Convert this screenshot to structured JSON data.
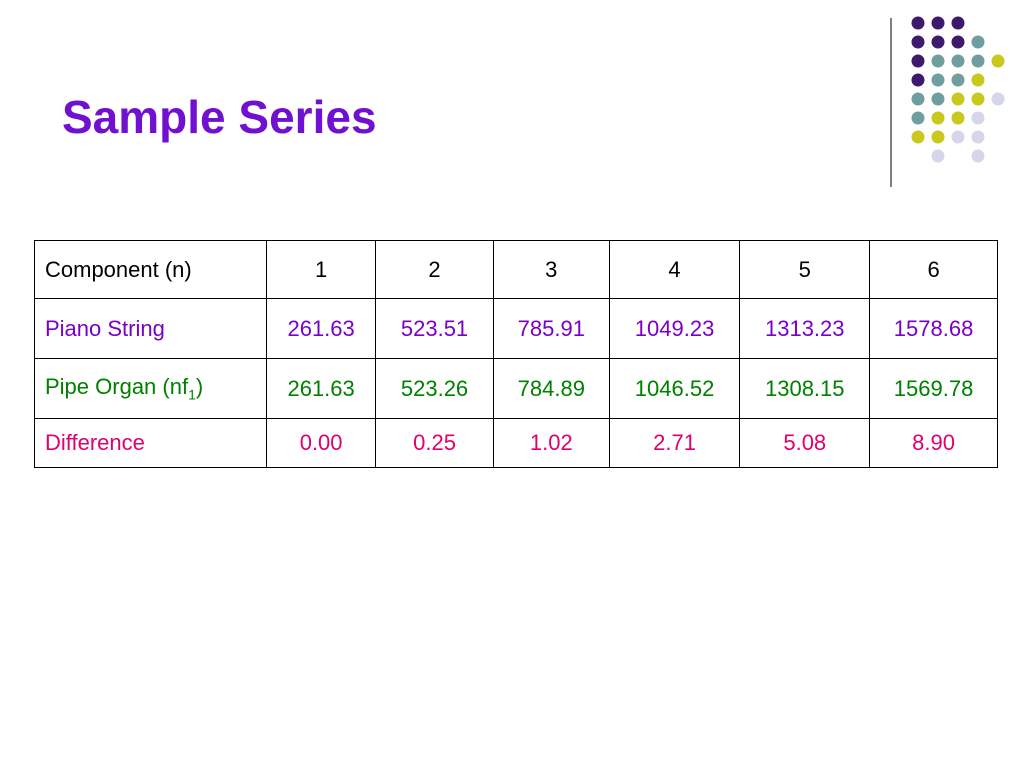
{
  "header": {
    "title": "Sample Series"
  },
  "table": {
    "header": [
      "Component (n)",
      "1",
      "2",
      "3",
      "4",
      "5",
      "6"
    ],
    "rows": [
      {
        "label": "Piano String",
        "values": [
          "261.63",
          "523.51",
          "785.91",
          "1049.23",
          "1313.23",
          "1578.68"
        ]
      },
      {
        "label": "Pipe Organ (nf",
        "label_sub": "1",
        "label_end": ")",
        "values": [
          "261.63",
          "523.26",
          "784.89",
          "1046.52",
          "1308.15",
          "1569.78"
        ]
      },
      {
        "label": "Difference",
        "values": [
          "0.00",
          "0.25",
          "1.02",
          "2.71",
          "5.08",
          "8.90"
        ]
      }
    ]
  }
}
